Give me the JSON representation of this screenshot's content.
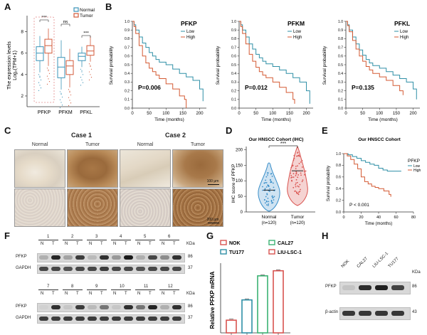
{
  "panels": {
    "A": "A",
    "B": "B",
    "C": "C",
    "D": "D",
    "E": "E",
    "F": "F",
    "G": "G",
    "H": "H"
  },
  "panelA": {
    "ylabel_line1": "The expression levels",
    "ylabel_line2": "Log₂(TPM+1)",
    "legend": [
      {
        "name": "Normal",
        "color": "#3a93b8"
      },
      {
        "name": "Tumor",
        "color": "#d35a3a"
      }
    ],
    "genes": [
      "PFKP",
      "PFKM",
      "PFKL"
    ],
    "yticks": [
      "2",
      "4",
      "6",
      "8"
    ],
    "sig": [
      "***",
      "ns",
      "***"
    ]
  },
  "panelB": {
    "ylabel": "Survival probability",
    "xlabel": "Time (months)",
    "xticks": [
      "0",
      "50",
      "100",
      "150",
      "200"
    ],
    "yticks": [
      "0.0",
      "0.1",
      "0.2",
      "0.3",
      "0.4",
      "0.5",
      "0.6",
      "0.7",
      "0.8",
      "0.9",
      "1.0"
    ],
    "legend": [
      {
        "name": "Low",
        "color": "#2e8fa6"
      },
      {
        "name": "High",
        "color": "#d45a33"
      }
    ],
    "plots": [
      {
        "gene": "PFKP",
        "p": "P=0.006"
      },
      {
        "gene": "PFKM",
        "p": "P=0.012"
      },
      {
        "gene": "PFKL",
        "p": "P=0.135"
      }
    ]
  },
  "panelC": {
    "case1": "Case 1",
    "case2": "Case 2",
    "normal": "Normal",
    "tumor": "Tumor",
    "scale1": "100 μm",
    "scale2": "200 μm"
  },
  "panelD": {
    "title": "Our HNSCC Cohort (IHC)",
    "ylabel": "IHC score of PFKP",
    "yticks": [
      "0",
      "50",
      "100",
      "150",
      "200"
    ],
    "groups": [
      {
        "name": "Normal",
        "n": "(n=120)",
        "color": "#3a8fc9"
      },
      {
        "name": "Tumor",
        "n": "(n=120)",
        "color": "#d9534f"
      }
    ],
    "sig": "***"
  },
  "panelE": {
    "title": "Our HNSCC Cohort",
    "legend_title": "PFKP",
    "legend": [
      {
        "name": "Low",
        "color": "#2e8fa6"
      },
      {
        "name": "High",
        "color": "#d45a33"
      }
    ],
    "ylabel": "Survival probability",
    "xlabel": "Time (months)",
    "p": "P < 0.001",
    "xticks": [
      "0",
      "20",
      "40",
      "60",
      "80"
    ],
    "yticks": [
      "0.0",
      "0.2",
      "0.4",
      "0.6",
      "0.8",
      "1.0"
    ]
  },
  "panelF": {
    "top_lanes": [
      "1",
      "2",
      "3",
      "4",
      "5",
      "6"
    ],
    "bottom_lanes": [
      "7",
      "8",
      "9",
      "10",
      "11",
      "12"
    ],
    "nt": [
      "N",
      "T"
    ],
    "kda": "KDa",
    "pfkp": "PFKP",
    "gapdh": "GAPDH",
    "kd86": "86",
    "kd37": "37"
  },
  "panelG": {
    "legend": [
      {
        "name": "NOK",
        "color": "#d9534f"
      },
      {
        "name": "CAL27",
        "color": "#3bb273"
      },
      {
        "name": "TU177",
        "color": "#2e8fa6"
      },
      {
        "name": "LIU-LSC-1",
        "color": "#d9534f"
      }
    ],
    "ylabel": "Relative PFKP mRNA",
    "chart_data": {
      "type": "bar",
      "categories": [
        "NOK",
        "TU177",
        "CAL27",
        "LIU-LSC-1"
      ],
      "values": [
        1.0,
        2.6,
        4.5,
        4.9
      ],
      "ylabel": "Relative PFKP mRNA",
      "ylim": [
        0,
        5.5
      ]
    }
  },
  "panelH": {
    "cells": [
      "NOK",
      "CAL27",
      "LIU-LSC-1",
      "TU177"
    ],
    "kda": "KDa",
    "pfkp": "PFKP",
    "actin": "β-actin",
    "kd86": "86",
    "kd43": "43"
  }
}
